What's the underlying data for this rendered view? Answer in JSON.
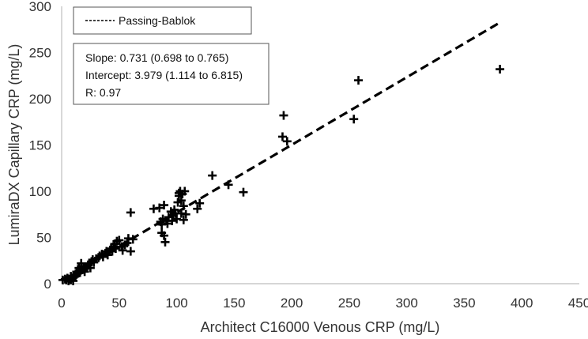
{
  "chart_data": {
    "type": "scatter",
    "title": "",
    "xlabel": "Architect C16000  Venous CRP (mg/L)",
    "ylabel": "LumiraDX Capillary CRP (mg/L)",
    "xlim": [
      0,
      450
    ],
    "ylim": [
      0,
      300
    ],
    "xticks": [
      0,
      50,
      100,
      150,
      200,
      250,
      300,
      350,
      400,
      450
    ],
    "yticks": [
      0,
      50,
      100,
      150,
      200,
      250,
      300
    ],
    "grid": false,
    "marker": "plus",
    "legend": {
      "label": "Passing-Bablok",
      "position": "top-left"
    },
    "stats": {
      "slope_text": "Slope: 0.731 (0.698 to 0.765)",
      "intercept_text": "Intercept: 3.979 (1.114 to 6.815)",
      "r_text": "R: 0.97"
    },
    "regression": {
      "slope": 0.731,
      "intercept": 3.979,
      "x_range": [
        0,
        381
      ],
      "style": "dashed"
    },
    "points": [
      [
        1,
        4
      ],
      [
        3,
        5
      ],
      [
        4,
        4
      ],
      [
        5,
        6
      ],
      [
        6,
        3
      ],
      [
        7,
        5
      ],
      [
        8,
        4
      ],
      [
        8,
        8
      ],
      [
        9,
        6
      ],
      [
        10,
        7
      ],
      [
        10,
        3
      ],
      [
        11,
        9
      ],
      [
        12,
        8
      ],
      [
        13,
        10
      ],
      [
        13,
        13
      ],
      [
        14,
        11
      ],
      [
        15,
        14
      ],
      [
        15,
        17
      ],
      [
        16,
        12
      ],
      [
        17,
        19
      ],
      [
        17,
        22
      ],
      [
        18,
        15
      ],
      [
        19,
        18
      ],
      [
        20,
        16
      ],
      [
        20,
        13
      ],
      [
        22,
        18
      ],
      [
        23,
        20
      ],
      [
        24,
        22
      ],
      [
        25,
        17
      ],
      [
        26,
        24
      ],
      [
        27,
        26
      ],
      [
        28,
        23
      ],
      [
        30,
        27
      ],
      [
        32,
        28
      ],
      [
        33,
        30
      ],
      [
        35,
        32
      ],
      [
        36,
        29
      ],
      [
        38,
        33
      ],
      [
        39,
        35
      ],
      [
        40,
        31
      ],
      [
        42,
        36
      ],
      [
        43,
        38
      ],
      [
        44,
        35
      ],
      [
        45,
        40
      ],
      [
        46,
        43
      ],
      [
        47,
        38
      ],
      [
        48,
        46
      ],
      [
        50,
        47
      ],
      [
        52,
        40
      ],
      [
        53,
        36
      ],
      [
        55,
        42
      ],
      [
        57,
        44
      ],
      [
        58,
        49
      ],
      [
        60,
        35
      ],
      [
        60,
        77
      ],
      [
        62,
        48
      ],
      [
        80,
        81
      ],
      [
        85,
        82
      ],
      [
        86,
        67
      ],
      [
        87,
        64
      ],
      [
        87,
        55
      ],
      [
        88,
        70
      ],
      [
        89,
        85
      ],
      [
        89,
        52
      ],
      [
        90,
        45
      ],
      [
        91,
        68
      ],
      [
        92,
        65
      ],
      [
        93,
        72
      ],
      [
        95,
        78
      ],
      [
        96,
        68
      ],
      [
        97,
        74
      ],
      [
        98,
        80
      ],
      [
        99,
        76
      ],
      [
        100,
        70
      ],
      [
        101,
        88
      ],
      [
        102,
        95
      ],
      [
        102,
        98
      ],
      [
        103,
        100
      ],
      [
        104,
        90
      ],
      [
        104,
        76
      ],
      [
        105,
        97
      ],
      [
        106,
        84
      ],
      [
        106,
        69
      ],
      [
        107,
        100
      ],
      [
        108,
        75
      ],
      [
        118,
        81
      ],
      [
        120,
        87
      ],
      [
        131,
        117
      ],
      [
        145,
        107
      ],
      [
        158,
        99
      ],
      [
        192,
        159
      ],
      [
        193,
        182
      ],
      [
        196,
        154
      ],
      [
        254,
        178
      ],
      [
        258,
        220
      ],
      [
        381,
        232
      ]
    ]
  }
}
